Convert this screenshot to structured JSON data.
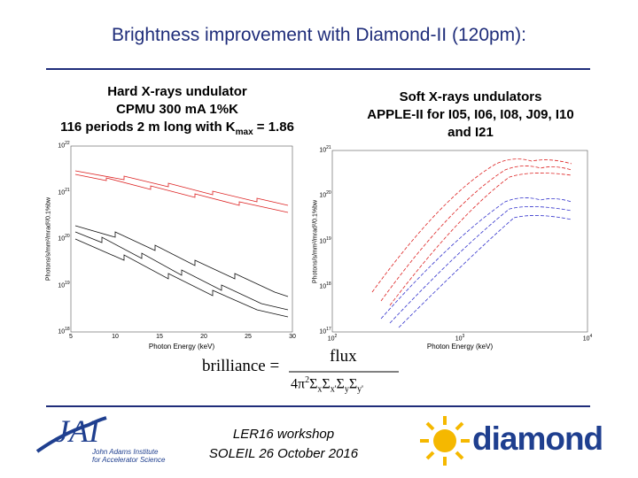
{
  "title": "Brightness improvement with Diamond-II (120pm):",
  "left": {
    "caption": [
      "Hard X-rays undulator",
      "CPMU 300 mA 1%K"
    ],
    "last_line": {
      "text": "116 periods 2 m long with K",
      "sub": "max",
      "tail": " = 1.86"
    },
    "plot": {
      "xlabel": "Photon Energy (keV)",
      "ylabel": "Photons/s/mm²/mrad²/0.1%bw",
      "xticks": [
        "5",
        "10",
        "15",
        "20",
        "25",
        "30"
      ],
      "yticks": [
        {
          "base": "10",
          "exp": "22"
        },
        {
          "base": "10",
          "exp": "21"
        },
        {
          "base": "10",
          "exp": "20"
        },
        {
          "base": "10",
          "exp": "19"
        },
        {
          "base": "10",
          "exp": "18"
        }
      ]
    }
  },
  "right": {
    "caption": [
      "Soft X-rays undulators",
      "APPLE-II for I05, I06, I08, J09, I10",
      "and I21"
    ],
    "plot": {
      "xlabel": "Photon Energy (keV)",
      "ylabel": "Photons/s/mm²/mrad²/0.1%bw",
      "xticks": [
        {
          "base": "10",
          "exp": "2"
        },
        {
          "base": "10",
          "exp": "3"
        },
        {
          "base": "10",
          "exp": "4"
        }
      ],
      "yticks": [
        {
          "base": "10",
          "exp": "21"
        },
        {
          "base": "10",
          "exp": "20"
        },
        {
          "base": "10",
          "exp": "19"
        },
        {
          "base": "10",
          "exp": "18"
        },
        {
          "base": "10",
          "exp": "17"
        }
      ]
    }
  },
  "formula": {
    "lhs": "brilliance =",
    "numerator": "flux",
    "denominator": {
      "coef": "4π",
      "power": "2",
      "terms": [
        {
          "sym": "Σ",
          "sub": "x"
        },
        {
          "sym": "Σ",
          "sub": "x'"
        },
        {
          "sym": "Σ",
          "sub": "y"
        },
        {
          "sym": "Σ",
          "sub": "y'"
        }
      ]
    }
  },
  "footer": {
    "event": "LER16 workshop",
    "venue": "SOLEIL 26 October 2016"
  },
  "logos": {
    "jai": {
      "mark": "JAI",
      "line1": "John Adams Institute",
      "line2": "for Accelerator Science"
    },
    "diamond": "diamond"
  }
}
